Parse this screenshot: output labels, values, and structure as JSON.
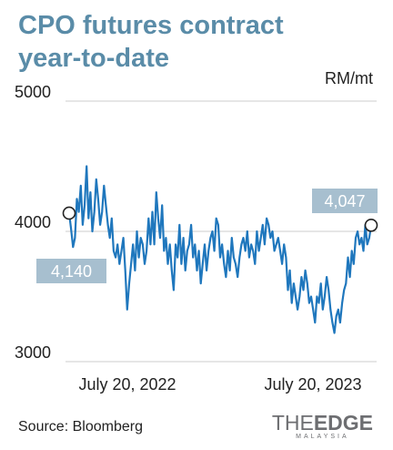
{
  "title_line1": "CPO futures contract",
  "title_line2": "year-to-date",
  "unit": "RM/mt",
  "source": "Source: Bloomberg",
  "logo": {
    "the": "THE",
    "edge": "EDGE",
    "sub": "MALAYSIA"
  },
  "colors": {
    "title": "#5a8ca8",
    "line": "#1f77bd",
    "callout": "#a7bfcf",
    "grid": "#cccccc"
  },
  "chart_data": {
    "type": "line",
    "title": "CPO futures contract year-to-date",
    "ylabel": "RM/mt",
    "ylim": [
      3000,
      5000
    ],
    "yticks": [
      5000,
      4000,
      3000
    ],
    "x_tick_labels": [
      "July 20, 2022",
      "July 20, 2023"
    ],
    "grid": true,
    "annotations": [
      {
        "label": "4,140",
        "value": 4140,
        "position": "start"
      },
      {
        "label": "4,047",
        "value": 4047,
        "position": "end"
      }
    ],
    "series": [
      {
        "values": [
          4140,
          4020,
          3880,
          3950,
          4250,
          4150,
          4350,
          4050,
          4200,
          4500,
          4100,
          4300,
          4000,
          4150,
          4400,
          4250,
          4050,
          4150,
          4350,
          4200,
          4050,
          3950,
          4100,
          3850,
          3800,
          3900,
          3750,
          3850,
          3950,
          3700,
          3400,
          3600,
          3750,
          3900,
          3700,
          4000,
          3800,
          3950,
          3900,
          3750,
          3850,
          4100,
          3900,
          4150,
          3900,
          4300,
          4100,
          3950,
          4200,
          3850,
          3950,
          3750,
          3900,
          3700,
          3550,
          3900,
          3800,
          4050,
          3750,
          3950,
          3700,
          3850,
          3900,
          4050,
          3800,
          3900,
          3700,
          3850,
          3600,
          3750,
          3900,
          3700,
          3850,
          3950,
          4000,
          3850,
          4100,
          4050,
          3800,
          3900,
          3750,
          3650,
          3850,
          3700,
          3950,
          3800,
          3750,
          3650,
          3800,
          3900,
          3950,
          3850,
          4000,
          3800,
          3900,
          3850,
          3750,
          4000,
          3850,
          3950,
          4050,
          3900,
          4100,
          4050,
          3950,
          4000,
          3850,
          3900,
          3950,
          3850,
          3750,
          3900,
          3800,
          3550,
          3700,
          3450,
          3600,
          3500,
          3400,
          3500,
          3650,
          3550,
          3700,
          3600,
          3450,
          3500,
          3400,
          3300,
          3500,
          3450,
          3600,
          3400,
          3500,
          3650,
          3550,
          3400,
          3300,
          3220,
          3350,
          3400,
          3300,
          3450,
          3550,
          3600,
          3800,
          3650,
          3850,
          3750,
          3950,
          4000,
          3900,
          3950,
          3850,
          4050,
          3900,
          3950,
          4047
        ]
      }
    ]
  }
}
